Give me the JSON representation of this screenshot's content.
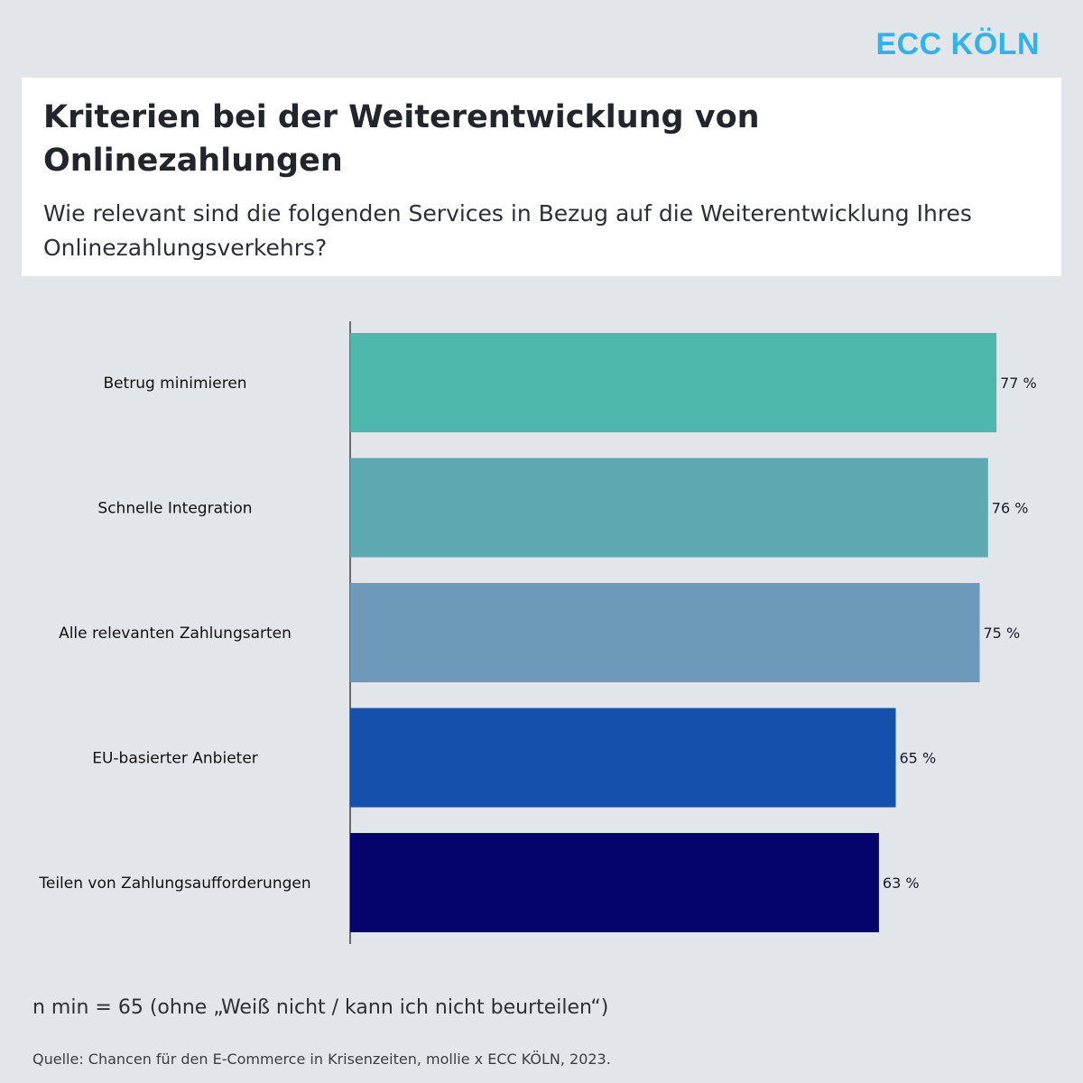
{
  "brand": {
    "logo_text": "ECC KÖLN",
    "logo_color": "#2fb3ea"
  },
  "header": {
    "title": "Kriterien bei der Weiterentwicklung von Onlinezahlungen",
    "subtitle": "Wie relevant sind die folgenden Services in Bezug auf die Weiterentwicklung Ihres Onlinezahlungsverkehrs?"
  },
  "chart_data": {
    "type": "bar",
    "orientation": "horizontal",
    "categories": [
      "Betrug minimieren",
      "Schnelle Integration",
      "Alle relevanten Zahlungsarten",
      "EU-basierter Anbieter",
      "Teilen von Zahlungsaufforderungen"
    ],
    "values": [
      77,
      76,
      75,
      65,
      63
    ],
    "value_labels": [
      "77 %",
      "76 %",
      "75 %",
      "65 %",
      "63 %"
    ],
    "colors": [
      "#4db6ad",
      "#5ca9b2",
      "#6d9aba",
      "#1450ac",
      "#05036c"
    ],
    "unit": "%",
    "xlim": [
      0,
      100
    ],
    "grid": false,
    "legend": "none"
  },
  "footer": {
    "note": "n min = 65 (ohne „Weiß nicht / kann ich nicht beurteilen“)",
    "source": "Quelle: Chancen für den E-Commerce in Krisenzeiten, mollie x ECC KÖLN, 2023."
  }
}
